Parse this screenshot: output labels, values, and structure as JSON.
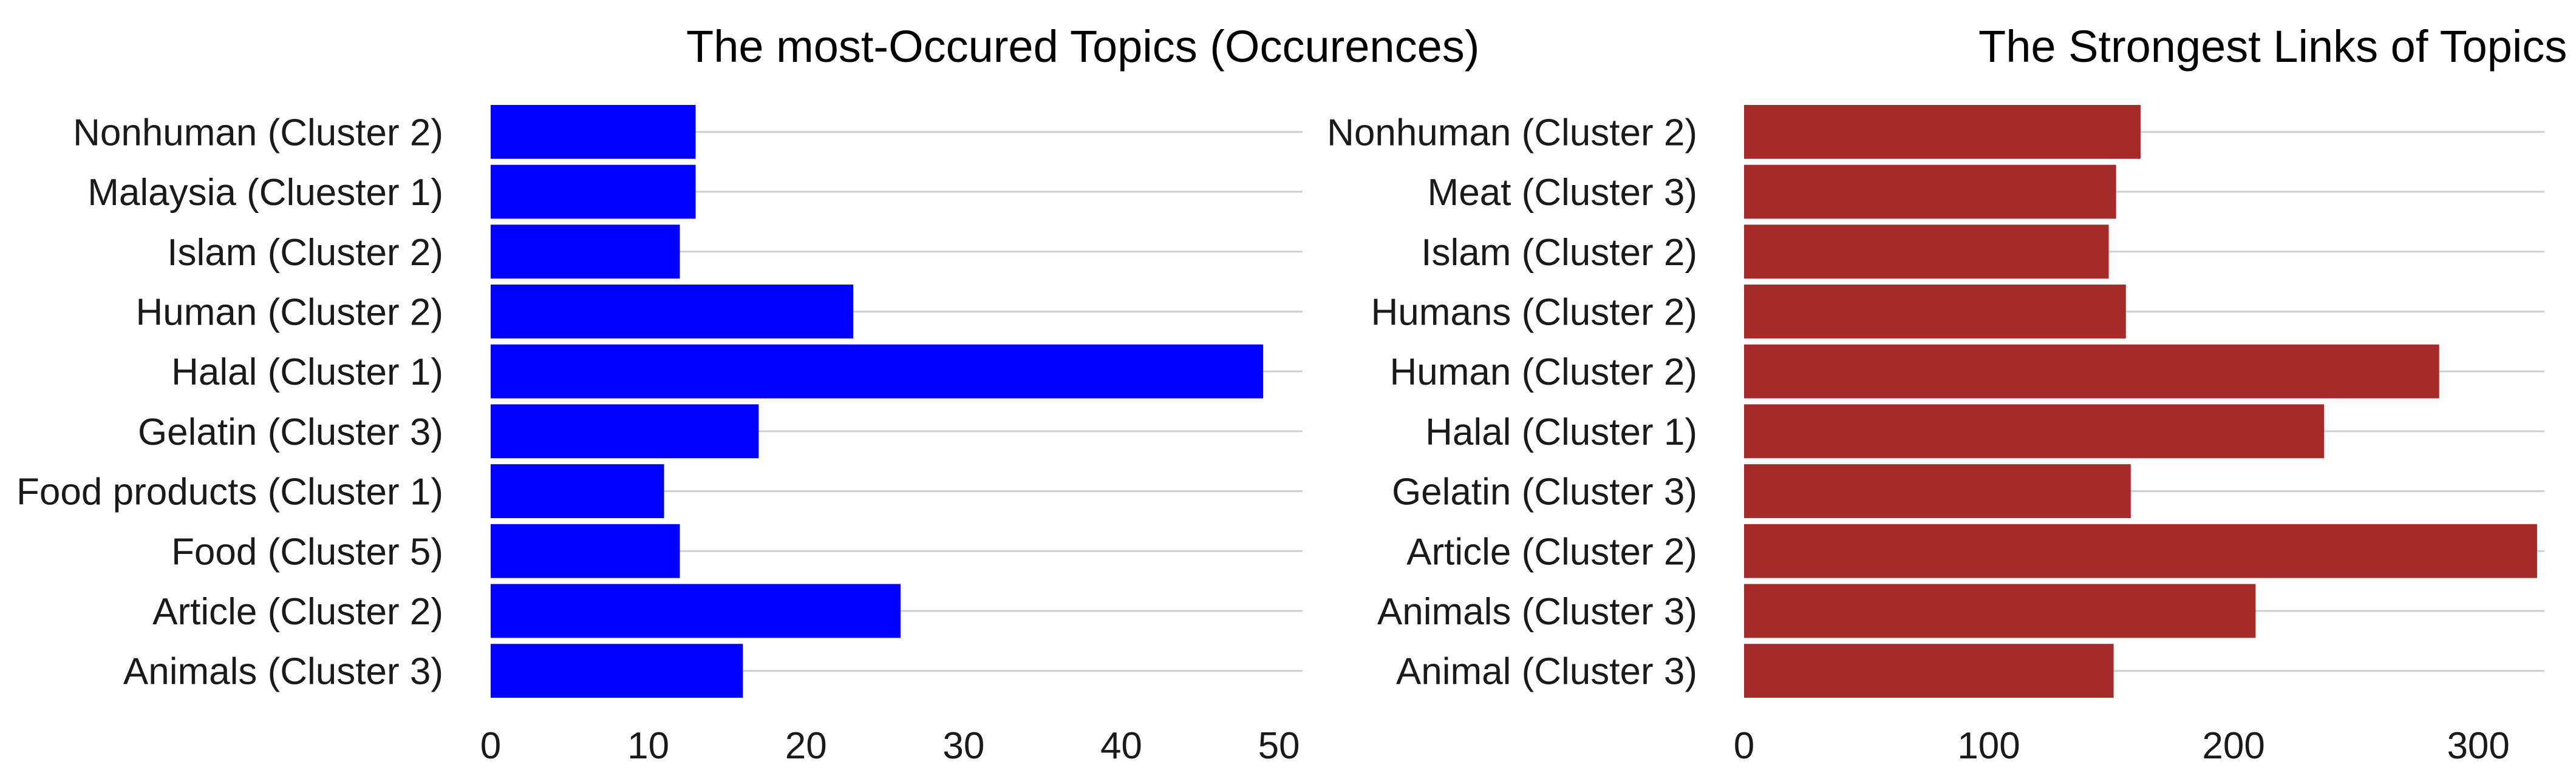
{
  "chart_data": [
    {
      "type": "bar",
      "orientation": "horizontal",
      "title": "The most-Occured Topics (Occurences)",
      "categories": [
        "Nonhuman (Cluster 2)",
        "Malaysia (Cluester 1)",
        "Islam (Cluster 2)",
        "Human (Cluster 2)",
        "Halal (Cluster 1)",
        "Gelatin (Cluster 3)",
        "Food products (Cluster 1)",
        "Food (Cluster 5)",
        "Article (Cluster 2)",
        "Animals (Cluster 3)"
      ],
      "values": [
        13,
        13,
        12,
        23,
        49,
        17,
        11,
        12,
        26,
        16
      ],
      "xlim": [
        0,
        51.5
      ],
      "xticks": [
        0,
        10,
        20,
        30,
        40,
        50
      ],
      "color": "#0000ff",
      "grid": "horizontal"
    },
    {
      "type": "bar",
      "orientation": "horizontal",
      "title": "The Strongest Links of Topics (Score)",
      "categories": [
        "Nonhuman (Cluster 2)",
        "Meat (Cluster 3)",
        "Islam (Cluster 2)",
        "Humans (Cluster 2)",
        "Human (Cluster 2)",
        "Halal (Cluster 1)",
        "Gelatin (Cluster 3)",
        "Article (Cluster 2)",
        "Animals (Cluster 3)",
        "Animal (Cluster 3)"
      ],
      "values": [
        162,
        152,
        149,
        156,
        284,
        237,
        158,
        324,
        209,
        151
      ],
      "xlim": [
        0,
        327
      ],
      "xticks": [
        0,
        100,
        200,
        300
      ],
      "color": "#a52a2a",
      "grid": "horizontal"
    }
  ]
}
